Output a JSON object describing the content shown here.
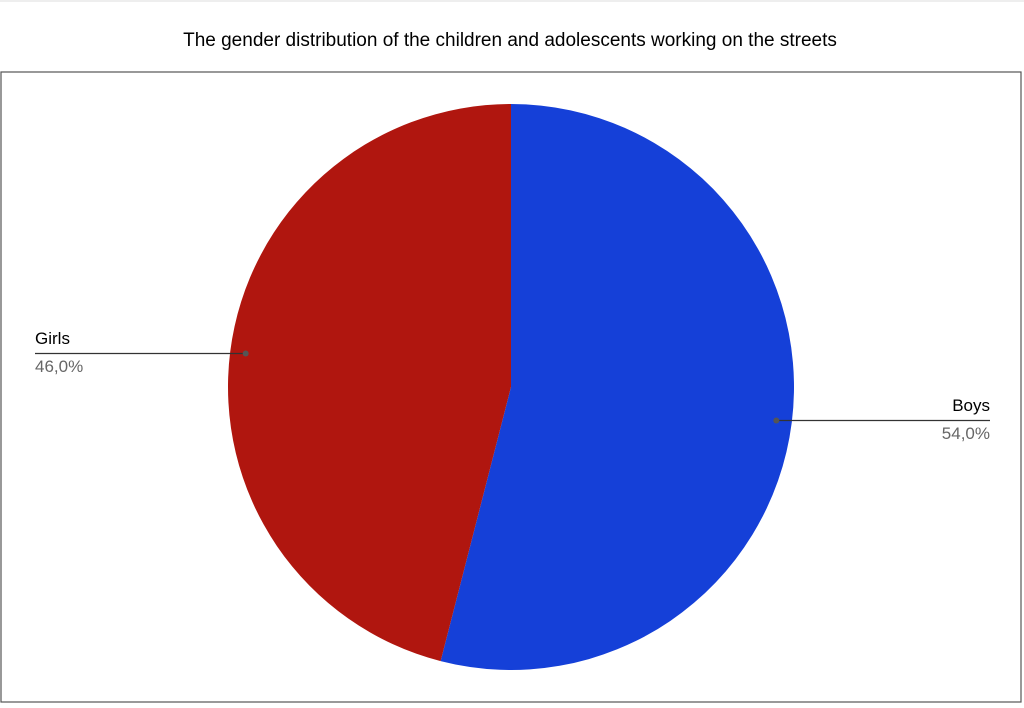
{
  "chart_data": {
    "type": "pie",
    "title": "The gender distribution of the children and adolescents working on the streets",
    "categories": [
      "Boys",
      "Girls"
    ],
    "values": [
      54,
      46
    ],
    "value_labels": [
      "54,0%",
      "46,0%"
    ],
    "colors": [
      "#1540d8",
      "#b0160f"
    ]
  }
}
